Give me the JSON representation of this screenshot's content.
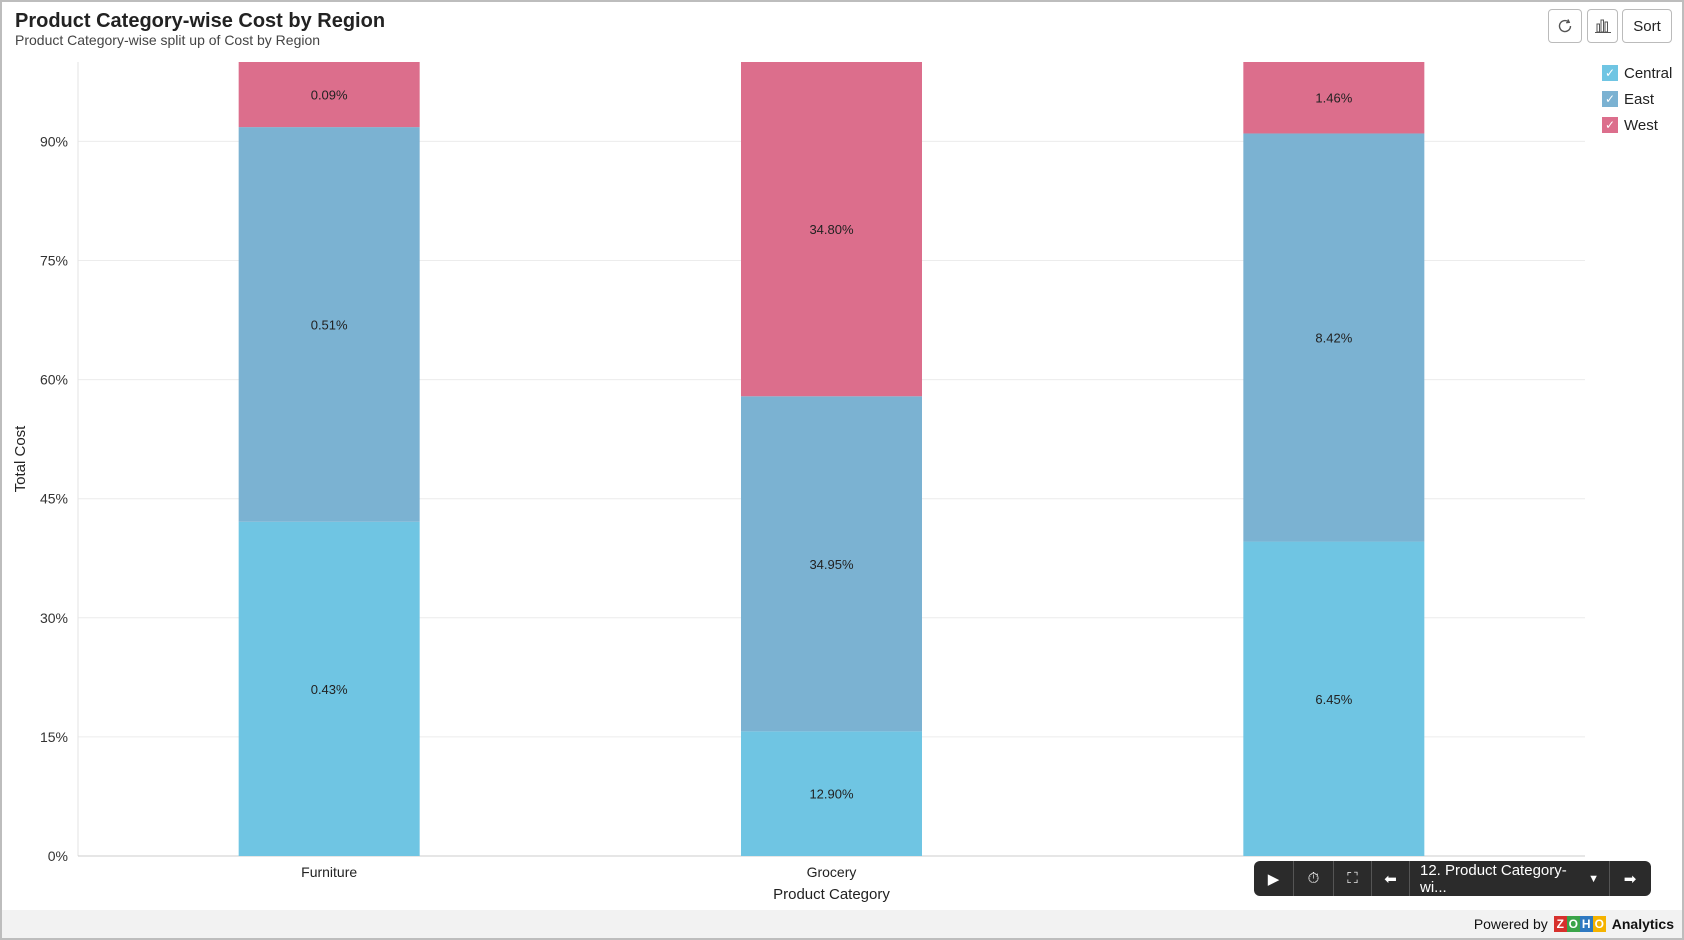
{
  "header": {
    "title": "Product Category-wise Cost by Region",
    "subtitle": "Product Category-wise split up of Cost by Region"
  },
  "toolbar": {
    "refresh_icon": "refresh-icon",
    "chart_icon": "bar-chart-icon",
    "sort_label": "Sort"
  },
  "player": {
    "selected_report": "12. Product Category-wi..."
  },
  "footer": {
    "powered_by": "Powered by",
    "brand_logo": "ZOHO",
    "product": "Analytics"
  },
  "chart_data": {
    "type": "bar",
    "stacked": true,
    "normalized": true,
    "title": "Product Category-wise Cost by Region",
    "xlabel": "Product Category",
    "ylabel": "Total Cost",
    "ylim": [
      0,
      100
    ],
    "yticks": [
      "0%",
      "15%",
      "30%",
      "45%",
      "60%",
      "75%",
      "90%"
    ],
    "ytick_values": [
      0,
      15,
      30,
      45,
      60,
      75,
      90
    ],
    "categories": [
      "Furniture",
      "Grocery",
      ""
    ],
    "legend_position": "top-right",
    "series": [
      {
        "name": "Central",
        "color": "#6fc5e3",
        "values": [
          42.1,
          15.7,
          39.6
        ],
        "labels": [
          "0.43%",
          "12.90%",
          "6.45%"
        ]
      },
      {
        "name": "East",
        "color": "#7bb2d2",
        "values": [
          49.7,
          42.2,
          51.4
        ],
        "labels": [
          "0.51%",
          "34.95%",
          "8.42%"
        ]
      },
      {
        "name": "West",
        "color": "#dc6e8c",
        "values": [
          8.2,
          42.1,
          9.0
        ],
        "labels": [
          "0.09%",
          "34.80%",
          "1.46%"
        ]
      }
    ]
  }
}
